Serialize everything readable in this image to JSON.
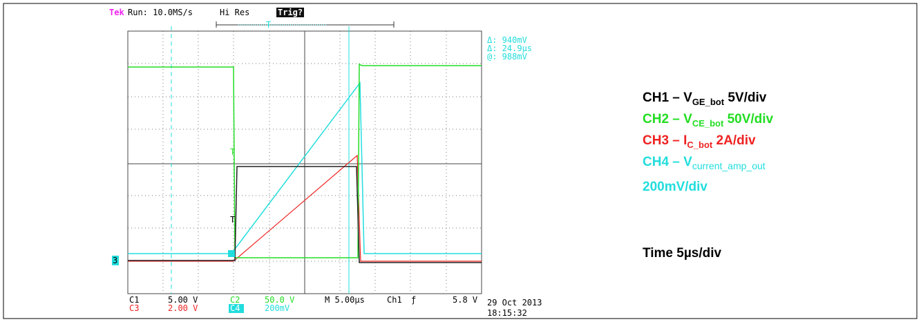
{
  "header": {
    "brand": "Tek",
    "status": "Run: 10.0MS/s",
    "mode": "Hi Res",
    "trigger": "Trig?"
  },
  "markers": {
    "trigger_top": "T",
    "trig_ch2": "T",
    "trig_ch1": "T",
    "ch3": "3"
  },
  "readouts": [
    "Δ: 940mV",
    "Δ: 24.9µs",
    "@: 988mV"
  ],
  "footer": {
    "c1": "C1",
    "c1_scale": "5.00 V",
    "c2": "C2",
    "c2_scale": "50.0 V",
    "timebase": "M 5.00µs",
    "trig_source": "Ch1",
    "trig_slope": "ƒ",
    "trig_level": "5.8 V",
    "c3": "C3",
    "c3_scale": "2.00 V",
    "c4": "C4",
    "c4_scale": "200mV",
    "date": "29 Oct 2013",
    "time": "18:15:32"
  },
  "legend": [
    {
      "channel": "CH1 – V",
      "sub": "GE_bot",
      "scale": " 5V/div"
    },
    {
      "channel": "CH2 – V",
      "sub": "CE_bot",
      "scale": " 50V/div"
    },
    {
      "channel": "CH3 – I",
      "sub": "C_bot",
      "scale": " 2A/div"
    },
    {
      "channel": "CH4 – V",
      "sub": "current_amp_out",
      "scale": "200mV/div"
    }
  ],
  "time_scale": "Time 5µs/div"
}
